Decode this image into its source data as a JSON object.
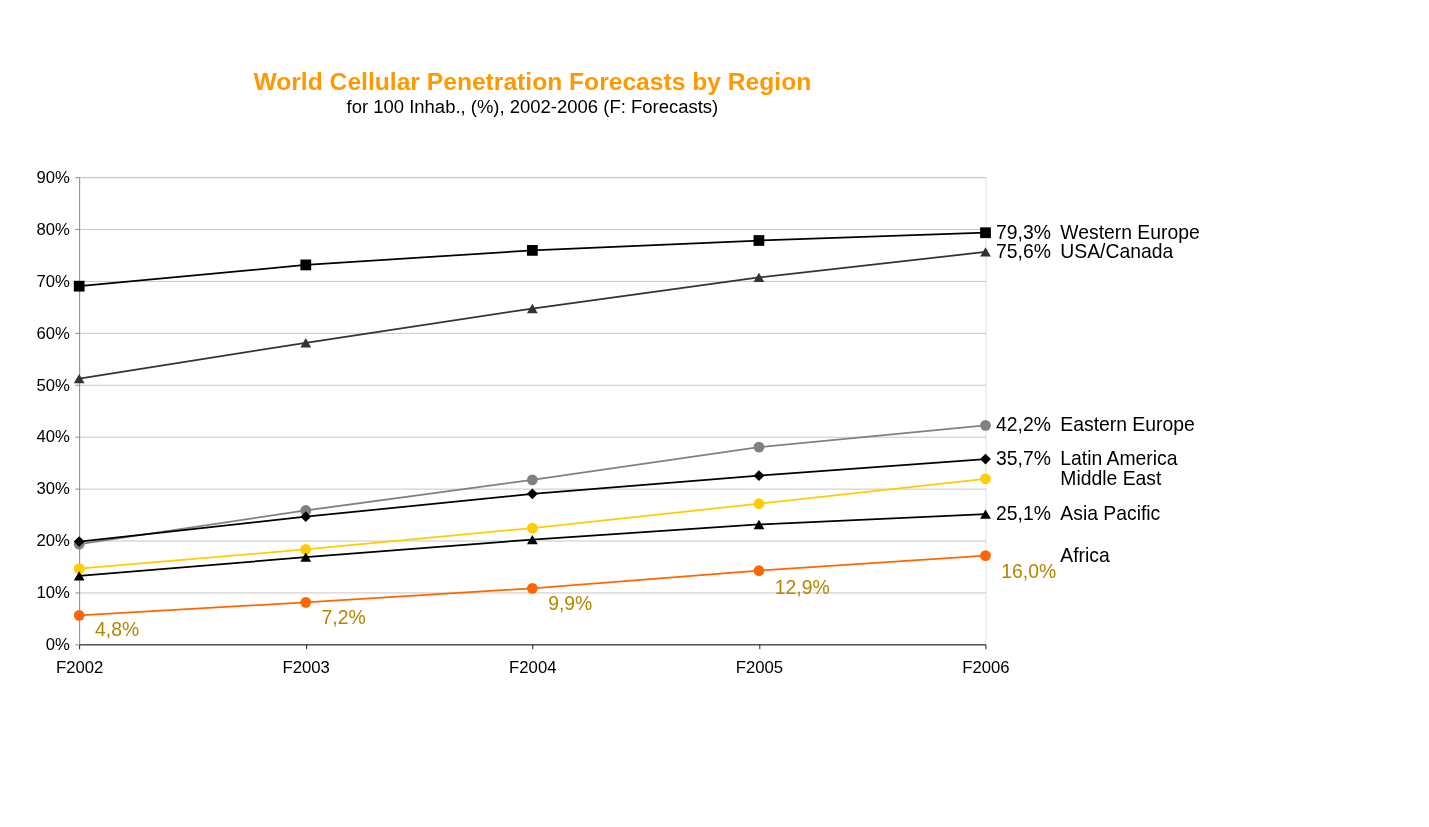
{
  "chart_data": {
    "type": "line",
    "title": "World Cellular Penetration Forecasts by Region",
    "subtitle": "for 100 Inhab., (%), 2002-2006 (F: Forecasts)",
    "categories": [
      "F2002",
      "F2003",
      "F2004",
      "F2005",
      "F2006"
    ],
    "series": [
      {
        "name": "Western Europe",
        "color": "#000000",
        "marker": "square",
        "values": [
          69.0,
          73.1,
          75.9,
          77.8,
          79.3
        ],
        "value_labels": [
          null,
          null,
          null,
          null,
          "79,3%"
        ]
      },
      {
        "name": "USA/Canada",
        "color": "#333333",
        "marker": "triangle",
        "values": [
          51.2,
          58.1,
          64.7,
          70.7,
          75.6
        ],
        "value_labels": [
          null,
          null,
          null,
          null,
          "75,6%"
        ]
      },
      {
        "name": "Eastern Europe",
        "color": "#808080",
        "marker": "circle",
        "values": [
          19.3,
          25.8,
          31.7,
          38.0,
          42.2
        ],
        "value_labels": [
          null,
          null,
          null,
          null,
          "42,2%"
        ]
      },
      {
        "name": "Latin America",
        "color": "#000000",
        "marker": "diamond",
        "values": [
          19.8,
          24.6,
          29.0,
          32.5,
          35.7
        ],
        "value_labels": [
          null,
          null,
          null,
          null,
          "35,7%"
        ]
      },
      {
        "name": "Middle East",
        "color": "#ffcc00",
        "marker": "circle",
        "values": [
          14.6,
          18.3,
          22.4,
          27.1,
          31.9
        ]
      },
      {
        "name": "Asia Pacific",
        "color": "#000000",
        "marker": "triangle",
        "values": [
          13.2,
          16.8,
          20.2,
          23.1,
          25.1
        ],
        "value_labels": [
          null,
          null,
          null,
          null,
          "25,1%"
        ]
      },
      {
        "name": "Africa",
        "color": "#ff6600",
        "marker": "circle",
        "values": [
          5.6,
          8.1,
          10.8,
          14.2,
          17.1
        ]
      }
    ],
    "annotations": [
      {
        "text": "4,8%",
        "x": "F2002",
        "y": 4.8
      },
      {
        "text": "7,2%",
        "x": "F2003",
        "y": 7.2
      },
      {
        "text": "9,9%",
        "x": "F2004",
        "y": 9.9
      },
      {
        "text": "12,9%",
        "x": "F2005",
        "y": 12.9
      },
      {
        "text": "16,0%",
        "x": "F2006",
        "y": 16.0
      }
    ],
    "ylim": [
      0,
      90
    ],
    "yticks": [
      {
        "value": 0,
        "label": "0%"
      },
      {
        "value": 10,
        "label": "10%"
      },
      {
        "value": 20,
        "label": "20%"
      },
      {
        "value": 30,
        "label": "30%"
      },
      {
        "value": 40,
        "label": "40%"
      },
      {
        "value": 50,
        "label": "50%"
      },
      {
        "value": 60,
        "label": "60%"
      },
      {
        "value": 70,
        "label": "70%"
      },
      {
        "value": 80,
        "label": "80%"
      },
      {
        "value": 90,
        "label": "90%"
      }
    ],
    "grid": "y"
  }
}
